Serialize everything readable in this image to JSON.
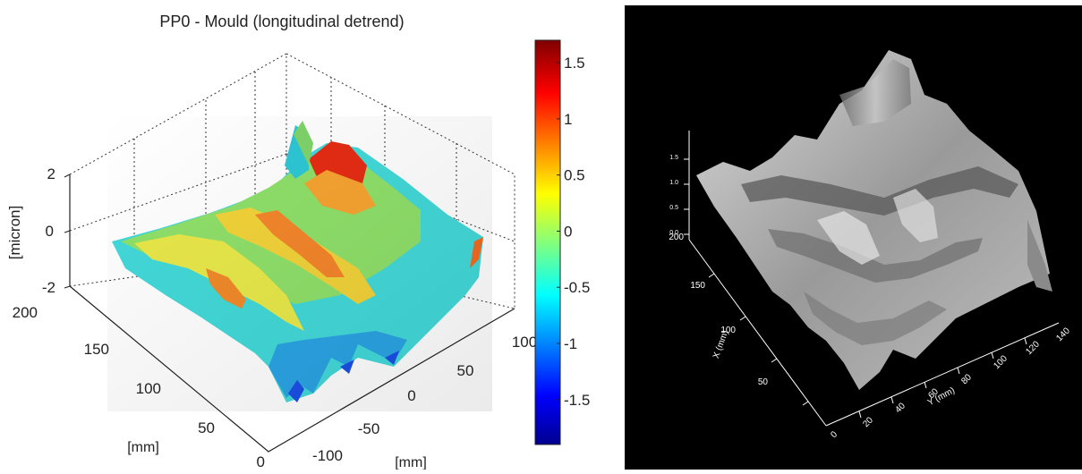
{
  "chart_data": [
    {
      "type": "surface",
      "title": "PP0 - Mould (longitudinal detrend)",
      "zlabel": "[micron]",
      "xlabel": "[mm]",
      "ylabel": "[mm]",
      "x_ticks": [
        "-100",
        "-50",
        "0",
        "50",
        "100"
      ],
      "y_ticks": [
        "0",
        "50",
        "100",
        "150",
        "200"
      ],
      "z_ticks": [
        "-2",
        "0",
        "2"
      ],
      "zlim": [
        -2,
        2
      ],
      "colorbar": {
        "ticks": [
          "1.5",
          "1",
          "0.5",
          "0",
          "-0.5",
          "-1",
          "-1.5"
        ],
        "range": [
          -1.9,
          1.7
        ],
        "colormap": "jet"
      },
      "grid": true,
      "colors": [
        "#00008f",
        "#0000ff",
        "#00ffff",
        "#ffff00",
        "#ff0000",
        "#800000"
      ]
    },
    {
      "type": "surface",
      "shading": "grayscale",
      "background": "#000000",
      "xlabel": "X (mm)",
      "ylabel": "Y (mm)",
      "x_ticks": [
        "50",
        "100",
        "150",
        "200"
      ],
      "y_ticks": [
        "0",
        "20",
        "40",
        "60",
        "80",
        "100",
        "120",
        "140"
      ],
      "z_ticks": [
        "1.5",
        "1.0",
        "0.5",
        "0.0"
      ]
    }
  ]
}
